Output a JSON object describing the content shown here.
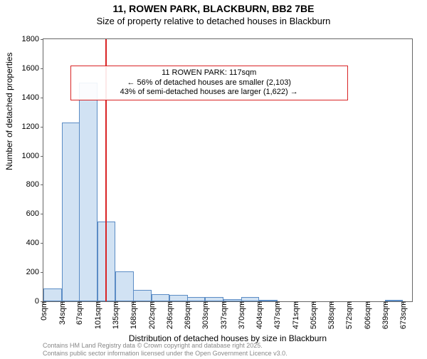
{
  "title": "11, ROWEN PARK, BLACKBURN, BB2 7BE",
  "subtitle": "Size of property relative to detached houses in Blackburn",
  "ylabel": "Number of detached properties",
  "xlabel": "Distribution of detached houses by size in Blackburn",
  "footer_line1": "Contains HM Land Registry data © Crown copyright and database right 2025.",
  "footer_line2": "Contains public sector information licensed under the Open Government Licence v3.0.",
  "chart": {
    "type": "histogram",
    "ylim": [
      0,
      1800
    ],
    "ytick_step": 200,
    "xlim": [
      0,
      690
    ],
    "xticks": [
      0,
      34,
      67,
      101,
      135,
      168,
      202,
      236,
      269,
      303,
      337,
      370,
      404,
      437,
      471,
      505,
      538,
      572,
      606,
      639,
      673
    ],
    "xtick_suffix": "sqm",
    "bin_width": 34,
    "bars": [
      90,
      1230,
      1500,
      550,
      205,
      80,
      50,
      45,
      30,
      30,
      15,
      30,
      5,
      0,
      0,
      0,
      0,
      0,
      0,
      5
    ],
    "bar_fill": "#d1e2f3",
    "bar_border": "#5b8cc5",
    "reference_line": {
      "x": 117,
      "color": "#d92425",
      "width": 2
    },
    "annotation": {
      "line1": "11 ROWEN PARK: 117sqm",
      "line2": "← 56% of detached houses are smaller (2,103)",
      "line3": "43% of semi-detached houses are larger (1,622) →",
      "border_color": "#d92425",
      "x_range": [
        50,
        570
      ],
      "y": 1620
    },
    "axis_color": "#666666",
    "background": "#ffffff"
  },
  "fonts": {
    "title_size": 14,
    "subtitle_size": 13,
    "axis_label_size": 12,
    "tick_size": 11,
    "annotation_size": 11,
    "footer_size": 9
  }
}
